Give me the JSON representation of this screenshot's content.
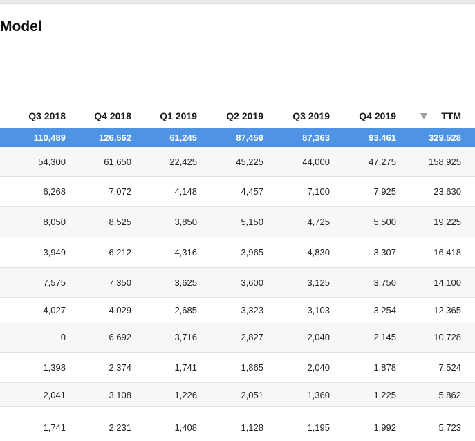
{
  "page": {
    "title": "Model"
  },
  "table": {
    "columns": [
      "Q3 2018",
      "Q4 2018",
      "Q1 2019",
      "Q2 2019",
      "Q3 2019",
      "Q4 2019",
      "TTM"
    ],
    "sort_column": "TTM",
    "sort_direction": "descending",
    "total_row": [
      "110,489",
      "126,562",
      "61,245",
      "87,459",
      "87,363",
      "93,461",
      "329,528"
    ],
    "rows": [
      [
        "54,300",
        "61,650",
        "22,425",
        "45,225",
        "44,000",
        "47,275",
        "158,925"
      ],
      [
        "6,268",
        "7,072",
        "4,148",
        "4,457",
        "7,100",
        "7,925",
        "23,630"
      ],
      [
        "8,050",
        "8,525",
        "3,850",
        "5,150",
        "4,725",
        "5,500",
        "19,225"
      ],
      [
        "3,949",
        "6,212",
        "4,316",
        "3,965",
        "4,830",
        "3,307",
        "16,418"
      ],
      [
        "7,575",
        "7,350",
        "3,625",
        "3,600",
        "3,125",
        "3,750",
        "14,100"
      ],
      [
        "4,027",
        "4,029",
        "2,685",
        "3,323",
        "3,103",
        "3,254",
        "12,365"
      ],
      [
        "0",
        "6,692",
        "3,716",
        "2,827",
        "2,040",
        "2,145",
        "10,728"
      ],
      [
        "1,398",
        "2,374",
        "1,741",
        "1,865",
        "2,040",
        "1,878",
        "7,524"
      ],
      [
        "2,041",
        "3,108",
        "1,226",
        "2,051",
        "1,360",
        "1,225",
        "5,862"
      ],
      [
        "1,741",
        "2,231",
        "1,408",
        "1,128",
        "1,195",
        "1,992",
        "5,723"
      ]
    ]
  },
  "colors": {
    "total_row_bg": "#4e93e4",
    "total_row_text": "#ffffff",
    "sort_icon": "#9e9e9e",
    "stripe": "#f7f7f7"
  },
  "icons": {
    "sort": "sort-descending-icon"
  }
}
